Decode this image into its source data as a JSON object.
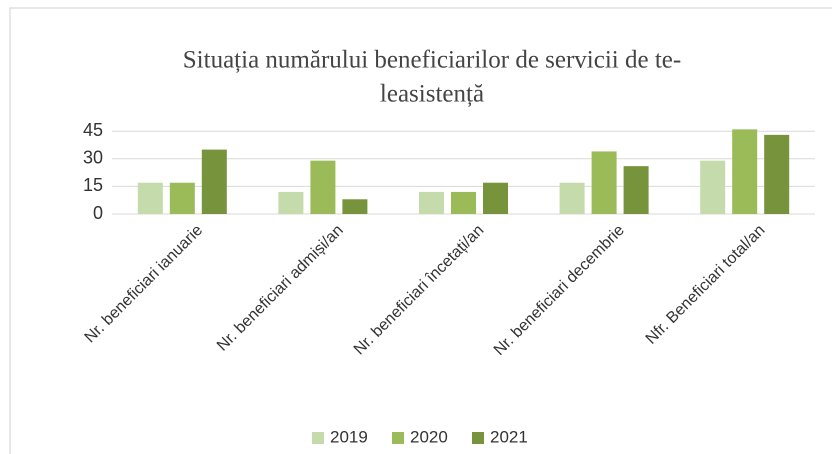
{
  "chart_data": {
    "type": "bar",
    "title": [
      "Situația numărului beneficiarilor de servicii de te-",
      "leasistență"
    ],
    "categories": [
      "Nr. beneficiari ianuarie",
      "Nr. beneficiari admiși/an",
      "Nr. beneficiari încetați/an",
      "Nr. beneficiari decembrie",
      "Nfr. Beneficiari total/an"
    ],
    "series": [
      {
        "name": "2019",
        "color": "#c5dbab",
        "values": [
          17,
          12,
          12,
          17,
          29
        ]
      },
      {
        "name": "2020",
        "color": "#9bbb59",
        "values": [
          17,
          29,
          12,
          34,
          46
        ]
      },
      {
        "name": "2021",
        "color": "#77933c",
        "values": [
          35,
          8,
          17,
          26,
          43
        ]
      }
    ],
    "ylim": [
      0,
      50
    ],
    "yticks": [
      0,
      15,
      30,
      45
    ],
    "grid": true,
    "legend": "bottom"
  }
}
